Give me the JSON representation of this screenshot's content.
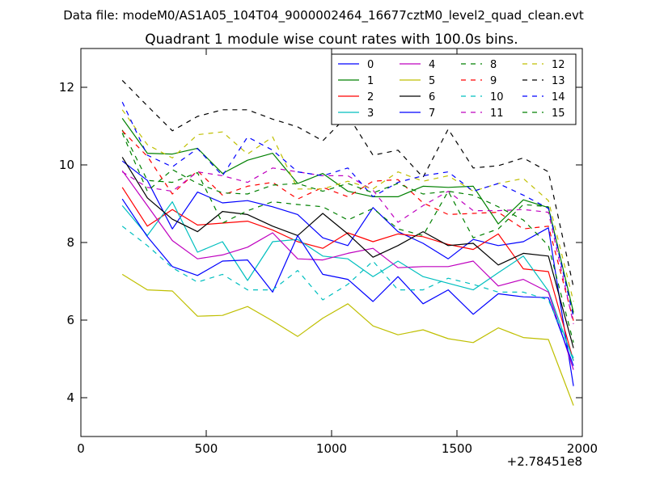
{
  "suptitle": "Data file: modeM0/AS1A05_104T04_9000002464_16677cztM0_level2_quad_clean.evt",
  "chart_data": {
    "type": "line",
    "title": "Quadrant 1 module wise count rates with 100.0s bins.",
    "xlabel": "",
    "ylabel": "",
    "x_offset_label": "+2.78451e8",
    "xlim": [
      0,
      2000
    ],
    "ylim": [
      3,
      13
    ],
    "xticks": [
      0,
      500,
      1000,
      1500,
      2000
    ],
    "xtick_labels": [
      "0",
      "500",
      "1000",
      "1500",
      "2000"
    ],
    "yticks": [
      4,
      6,
      8,
      10,
      12
    ],
    "ytick_labels": [
      "4",
      "6",
      "8",
      "10",
      "12"
    ],
    "grid": false,
    "legend_position": "top-right",
    "legend_columns": 4,
    "x": [
      165,
      265,
      365,
      465,
      565,
      665,
      765,
      865,
      965,
      1065,
      1165,
      1265,
      1365,
      1465,
      1565,
      1665,
      1765,
      1865,
      1965
    ],
    "series": [
      {
        "name": "0",
        "color": "#0000ff",
        "dash": "solid",
        "values": [
          10.1,
          9.6,
          8.35,
          9.3,
          9.02,
          9.08,
          8.92,
          8.72,
          8.12,
          7.92,
          8.9,
          8.28,
          7.98,
          7.58,
          8.08,
          7.92,
          8.02,
          8.38,
          4.3
        ]
      },
      {
        "name": "1",
        "color": "#008000",
        "dash": "solid",
        "values": [
          11.2,
          10.3,
          10.28,
          10.43,
          9.78,
          10.12,
          10.3,
          9.52,
          9.78,
          9.32,
          9.18,
          9.18,
          9.45,
          9.42,
          9.45,
          8.48,
          9.1,
          8.9,
          6.2
        ]
      },
      {
        "name": "2",
        "color": "#ff0000",
        "dash": "solid",
        "values": [
          9.42,
          8.42,
          8.85,
          8.45,
          8.5,
          8.55,
          8.32,
          8.02,
          7.85,
          8.25,
          8.02,
          8.22,
          8.15,
          7.95,
          7.82,
          8.22,
          7.32,
          7.25,
          4.95
        ]
      },
      {
        "name": "3",
        "color": "#00bfbf",
        "dash": "solid",
        "values": [
          8.95,
          8.18,
          9.05,
          7.75,
          8.02,
          7.02,
          8.02,
          8.08,
          7.65,
          7.58,
          7.12,
          7.52,
          7.12,
          6.95,
          6.78,
          7.22,
          7.65,
          6.75,
          4.95
        ]
      },
      {
        "name": "4",
        "color": "#bf00bf",
        "dash": "solid",
        "values": [
          9.85,
          8.95,
          8.05,
          7.58,
          7.68,
          7.88,
          8.25,
          7.58,
          7.55,
          7.72,
          7.85,
          7.35,
          7.38,
          7.38,
          7.52,
          6.88,
          7.05,
          6.72,
          4.72
        ]
      },
      {
        "name": "5",
        "color": "#bfbf00",
        "dash": "solid",
        "values": [
          7.18,
          6.78,
          6.75,
          6.1,
          6.12,
          6.35,
          5.98,
          5.58,
          6.05,
          6.42,
          5.85,
          5.62,
          5.75,
          5.52,
          5.42,
          5.8,
          5.55,
          5.5,
          3.8
        ]
      },
      {
        "name": "6",
        "color": "#000000",
        "dash": "solid",
        "values": [
          10.2,
          9.15,
          8.6,
          8.28,
          8.8,
          8.72,
          8.42,
          8.18,
          8.75,
          8.22,
          7.62,
          7.92,
          8.28,
          7.92,
          7.98,
          7.42,
          7.72,
          7.65,
          5.28
        ]
      },
      {
        "name": "7",
        "color": "#0000ff",
        "dash": "solid",
        "values": [
          9.12,
          8.15,
          7.38,
          7.15,
          7.52,
          7.55,
          6.72,
          8.18,
          7.18,
          7.05,
          6.48,
          7.12,
          6.42,
          6.78,
          6.15,
          6.68,
          6.6,
          6.58,
          4.82
        ]
      },
      {
        "name": "8",
        "color": "#008000",
        "dash": "dashed",
        "values": [
          10.9,
          9.6,
          9.55,
          9.8,
          8.5,
          8.82,
          9.05,
          8.98,
          8.92,
          8.58,
          8.88,
          8.35,
          8.18,
          9.32,
          8.12,
          8.35,
          8.98,
          8.92,
          6.15
        ]
      },
      {
        "name": "9",
        "color": "#ff0000",
        "dash": "dashed",
        "values": [
          10.88,
          10.22,
          9.25,
          9.85,
          9.22,
          9.45,
          9.55,
          9.12,
          9.42,
          9.18,
          9.58,
          9.62,
          9.02,
          8.72,
          8.75,
          8.78,
          8.35,
          8.42,
          5.98
        ]
      },
      {
        "name": "10",
        "color": "#00bfbf",
        "dash": "dashed",
        "values": [
          8.42,
          7.92,
          7.35,
          6.98,
          7.18,
          6.78,
          6.78,
          7.28,
          6.52,
          6.92,
          7.52,
          6.78,
          6.78,
          7.08,
          6.92,
          6.72,
          6.72,
          6.52,
          5.02
        ]
      },
      {
        "name": "11",
        "color": "#bf00bf",
        "dash": "dashed",
        "values": [
          9.82,
          9.42,
          9.32,
          9.82,
          9.72,
          9.55,
          9.92,
          9.82,
          9.72,
          9.72,
          9.35,
          8.52,
          8.95,
          9.32,
          8.82,
          8.82,
          8.85,
          8.78,
          5.9
        ]
      },
      {
        "name": "12",
        "color": "#bfbf00",
        "dash": "dashed",
        "values": [
          11.42,
          10.52,
          10.18,
          10.78,
          10.85,
          10.28,
          10.72,
          9.38,
          9.38,
          9.58,
          9.38,
          9.82,
          9.58,
          9.72,
          9.32,
          9.52,
          9.65,
          9.08,
          6.48
        ]
      },
      {
        "name": "13",
        "color": "#000000",
        "dash": "dashed",
        "values": [
          12.18,
          11.52,
          10.88,
          11.25,
          11.42,
          11.42,
          11.18,
          10.98,
          10.62,
          11.28,
          10.25,
          10.38,
          9.68,
          10.92,
          9.92,
          9.98,
          10.18,
          9.82,
          6.85
        ]
      },
      {
        "name": "14",
        "color": "#0000ff",
        "dash": "dashed",
        "values": [
          11.62,
          10.25,
          9.95,
          10.42,
          9.72,
          10.72,
          10.38,
          9.82,
          9.72,
          9.92,
          9.18,
          9.55,
          9.72,
          9.82,
          9.32,
          9.52,
          9.22,
          8.88,
          6.08
        ]
      },
      {
        "name": "15",
        "color": "#008000",
        "dash": "dashed",
        "values": [
          10.82,
          9.32,
          9.88,
          9.52,
          9.28,
          9.25,
          9.48,
          9.52,
          9.32,
          9.52,
          9.28,
          9.52,
          9.25,
          9.32,
          9.22,
          8.92,
          8.58,
          7.92,
          5.42
        ]
      }
    ]
  }
}
